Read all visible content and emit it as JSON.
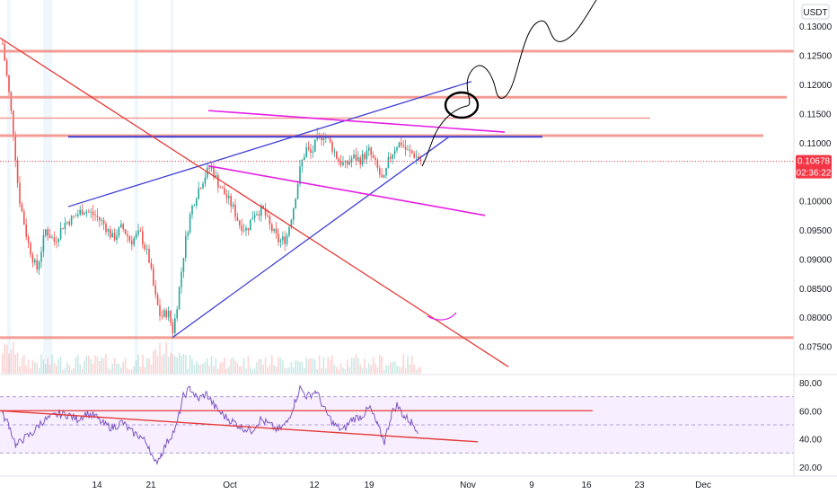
{
  "chart_data": {
    "type": "candlestick",
    "quote_unit": "USDT",
    "price_axis": {
      "ticks": [
        "0.13000",
        "0.12500",
        "0.12000",
        "0.11500",
        "0.11000",
        "0.10500",
        "0.10000",
        "0.09500",
        "0.09000",
        "0.08500",
        "0.08000",
        "0.07500"
      ],
      "range": [
        0.07,
        0.1345
      ]
    },
    "last_price": {
      "label": "0.10678",
      "value": 0.10678,
      "countdown": "02:36:22",
      "color": "#f23645"
    },
    "time_axis": {
      "labels": [
        "14",
        "21",
        "Oct",
        "12",
        "19",
        "Nov",
        "9",
        "16",
        "23",
        "Dec"
      ]
    },
    "rsi": {
      "ticks": [
        "80.00",
        "60.00",
        "40.00",
        "20.00"
      ],
      "range": [
        15,
        85
      ],
      "band": [
        30,
        70
      ],
      "color": "#7e57c2",
      "band_color": "#f3e8ff"
    },
    "colors": {
      "up": "#26a69a",
      "down": "#ef5350",
      "horizontal_levels": "#f28b82",
      "trend_blue": "#3f3fd6",
      "trend_magenta": "#e61ee6",
      "trend_red": "#e53935",
      "freehand": "#000000"
    },
    "horizontal_levels": [
      0.1257,
      0.1178,
      0.1142,
      0.1112,
      0.0765
    ],
    "trendlines": {
      "rising_wedge_upper": [
        0.099,
        0.1205
      ],
      "rising_wedge_lower": [
        0.0765,
        0.111
      ],
      "channel_upper": [
        0.1155,
        0.1118
      ],
      "channel_lower": [
        0.106,
        0.0975
      ],
      "mid_level": [
        0.111,
        0.111
      ],
      "falling_line": [
        0.128,
        0.0715
      ]
    }
  }
}
